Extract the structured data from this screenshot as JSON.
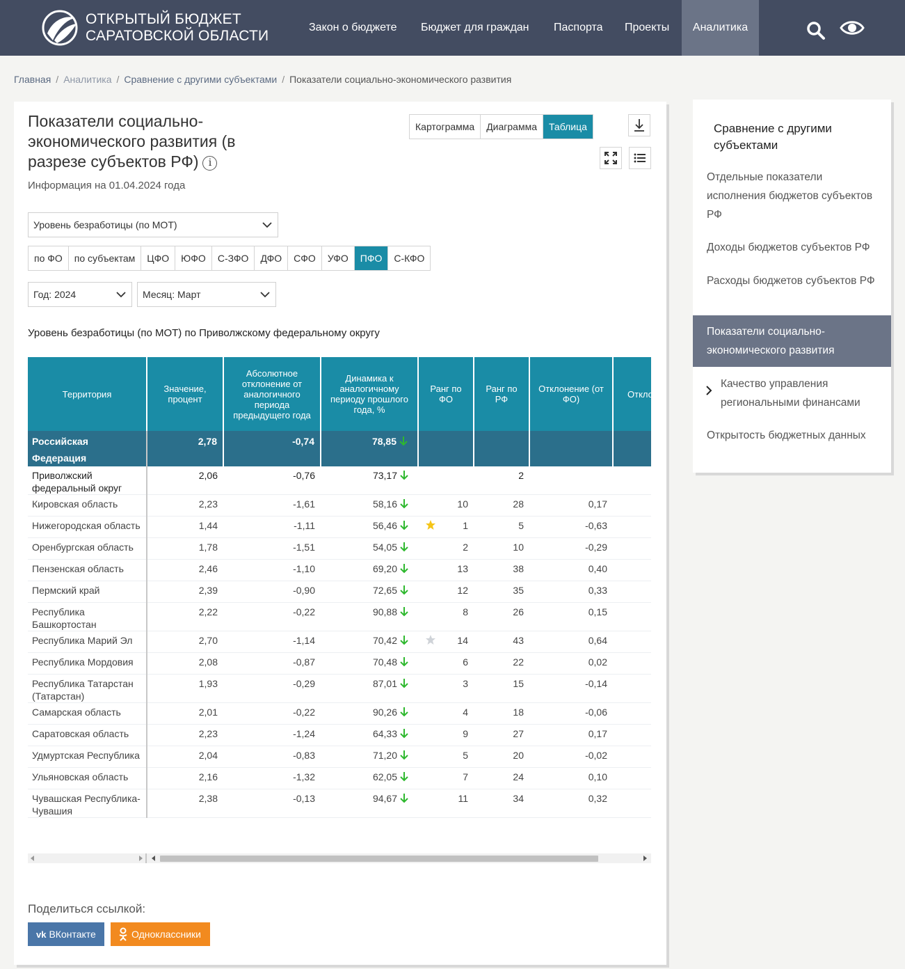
{
  "header": {
    "logo_line1": "ОТКРЫТЫЙ БЮДЖЕТ",
    "logo_line2": "САРАТОВСКОЙ ОБЛАСТИ",
    "nav": [
      {
        "label": "Закон о бюджете"
      },
      {
        "label": "Бюджет для граждан"
      },
      {
        "label": "Паспорта"
      },
      {
        "label": "Проекты"
      },
      {
        "label": "Аналитика"
      }
    ],
    "icons": [
      "search-icon",
      "eye-icon"
    ]
  },
  "breadcrumb": [
    "Главная",
    "Аналитика",
    "Сравнение с другими субъектами",
    "Показатели социально-экономического развития"
  ],
  "page": {
    "title": "Показатели социально-экономического развития (в разрезе субъектов РФ)",
    "info_glyph": "i",
    "subtitle": "Информация на 01.04.2024 года",
    "view_tabs": [
      "Картограмма",
      "Диаграмма",
      "Таблица"
    ],
    "indicator_select": "Уровень безработицы (по МОТ)",
    "filter_tabs": [
      "по ФО",
      "по субъектам",
      "ЦФО",
      "ЮФО",
      "С-ЗФО",
      "ДФО",
      "СФО",
      "УФО",
      "ПФО",
      "С-КФО"
    ],
    "active_filter": "ПФО",
    "year_select": "Год: 2024",
    "month_select": "Месяц: Март",
    "table_title": "Уровень безработицы (по МОТ) по Приволжскому федеральному округу"
  },
  "table": {
    "columns": [
      "Территория",
      "Значение, процент",
      "Абсолютное отклонение от аналогичного периода предыдущего года",
      "Динамика к аналогичному периоду прошлого года, %",
      "Ранг по ФО",
      "Ранг по РФ",
      "Отклонение (от ФО)",
      "Отклонение (от РФ)"
    ],
    "rows": [
      {
        "name": "Российская Федерация",
        "value": "2,78",
        "abs": "-0,74",
        "dyn": "78,85",
        "rank_fo": "",
        "rank_rf": "",
        "dev_fo": "",
        "dev_rf": "",
        "type": "rf"
      },
      {
        "name": "Приволжский федеральный округ",
        "value": "2,06",
        "abs": "-0,76",
        "dyn": "73,17",
        "rank_fo": "",
        "rank_rf": "2",
        "dev_fo": "",
        "dev_rf": "",
        "type": "pfo"
      },
      {
        "name": "Кировская область",
        "value": "2,23",
        "abs": "-1,61",
        "dyn": "58,16",
        "rank_fo": "10",
        "rank_rf": "28",
        "dev_fo": "0,17",
        "dev_rf": ""
      },
      {
        "name": "Нижегородская область",
        "value": "1,44",
        "abs": "-1,11",
        "dyn": "56,46",
        "rank_fo": "1",
        "rank_rf": "5",
        "dev_fo": "-0,63",
        "dev_rf": "",
        "star": "gold"
      },
      {
        "name": "Оренбургская область",
        "value": "1,78",
        "abs": "-1,51",
        "dyn": "54,05",
        "rank_fo": "2",
        "rank_rf": "10",
        "dev_fo": "-0,29",
        "dev_rf": ""
      },
      {
        "name": "Пензенская область",
        "value": "2,46",
        "abs": "-1,10",
        "dyn": "69,20",
        "rank_fo": "13",
        "rank_rf": "38",
        "dev_fo": "0,40",
        "dev_rf": ""
      },
      {
        "name": "Пермский край",
        "value": "2,39",
        "abs": "-0,90",
        "dyn": "72,65",
        "rank_fo": "12",
        "rank_rf": "35",
        "dev_fo": "0,33",
        "dev_rf": ""
      },
      {
        "name": "Республика Башкортостан",
        "value": "2,22",
        "abs": "-0,22",
        "dyn": "90,88",
        "rank_fo": "8",
        "rank_rf": "26",
        "dev_fo": "0,15",
        "dev_rf": ""
      },
      {
        "name": "Республика Марий Эл",
        "value": "2,70",
        "abs": "-1,14",
        "dyn": "70,42",
        "rank_fo": "14",
        "rank_rf": "43",
        "dev_fo": "0,64",
        "dev_rf": "",
        "star": "grey"
      },
      {
        "name": "Республика Мордовия",
        "value": "2,08",
        "abs": "-0,87",
        "dyn": "70,48",
        "rank_fo": "6",
        "rank_rf": "22",
        "dev_fo": "0,02",
        "dev_rf": ""
      },
      {
        "name": "Республика Татарстан (Татарстан)",
        "value": "1,93",
        "abs": "-0,29",
        "dyn": "87,01",
        "rank_fo": "3",
        "rank_rf": "15",
        "dev_fo": "-0,14",
        "dev_rf": ""
      },
      {
        "name": "Самарская область",
        "value": "2,01",
        "abs": "-0,22",
        "dyn": "90,26",
        "rank_fo": "4",
        "rank_rf": "18",
        "dev_fo": "-0,06",
        "dev_rf": ""
      },
      {
        "name": "Саратовская область",
        "value": "2,23",
        "abs": "-1,24",
        "dyn": "64,33",
        "rank_fo": "9",
        "rank_rf": "27",
        "dev_fo": "0,17",
        "dev_rf": ""
      },
      {
        "name": "Удмуртская Республика",
        "value": "2,04",
        "abs": "-0,83",
        "dyn": "71,20",
        "rank_fo": "5",
        "rank_rf": "20",
        "dev_fo": "-0,02",
        "dev_rf": ""
      },
      {
        "name": "Ульяновская область",
        "value": "2,16",
        "abs": "-1,32",
        "dyn": "62,05",
        "rank_fo": "7",
        "rank_rf": "24",
        "dev_fo": "0,10",
        "dev_rf": ""
      },
      {
        "name": "Чувашская Республика-Чувашия",
        "value": "2,38",
        "abs": "-0,13",
        "dyn": "94,67",
        "rank_fo": "11",
        "rank_rf": "34",
        "dev_fo": "0,32",
        "dev_rf": ""
      }
    ],
    "down_arrow_color": "#2eb82e"
  },
  "share": {
    "label": "Поделиться ссылкой:",
    "vk": "ВКонтакте",
    "ok": "Одноклассники"
  },
  "sidebar": {
    "title": "Сравнение с другими субъектами",
    "items": [
      "Отдельные показатели исполнения бюджетов субъектов РФ",
      "Доходы бюджетов субъектов РФ",
      "Расходы бюджетов субъектов РФ",
      "Показатели социально-экономического развития",
      "Качество управления региональными финансами",
      "Открытость бюджетных данных"
    ]
  },
  "colors": {
    "header": "#434c61",
    "accent": "#1a8ca6",
    "rf_row": "#2b6f8b",
    "vk": "#4a76a8",
    "ok": "#f28a1f"
  }
}
